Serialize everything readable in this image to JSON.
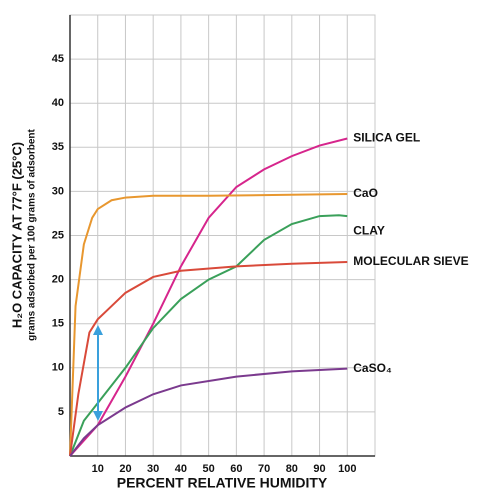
{
  "chart_data": {
    "type": "line",
    "xlabel": "PERCENT RELATIVE HUMIDITY",
    "ylabel": "H₂O CAPACITY AT 77°F (25°C)",
    "ylabel_sub": "grams adsorbed per 100 grams of adsorbent",
    "xlim": [
      0,
      110
    ],
    "ylim": [
      0,
      50
    ],
    "xticks": [
      10,
      20,
      30,
      40,
      50,
      60,
      70,
      80,
      90,
      100
    ],
    "yticks": [
      5,
      10,
      15,
      20,
      25,
      30,
      35,
      40,
      45
    ],
    "grid": true,
    "series": [
      {
        "name": "SILICA GEL",
        "color": "#d6258c",
        "x": [
          0,
          10,
          20,
          30,
          40,
          50,
          60,
          70,
          80,
          90,
          100
        ],
        "values": [
          0,
          3.5,
          9,
          15,
          21.5,
          27,
          30.5,
          32.5,
          34,
          35.2,
          36
        ]
      },
      {
        "name": "CaO",
        "color": "#e8972f",
        "x": [
          0,
          2,
          5,
          8,
          10,
          15,
          20,
          30,
          50,
          100
        ],
        "values": [
          0,
          17,
          24,
          27,
          28,
          29,
          29.3,
          29.5,
          29.5,
          29.7
        ]
      },
      {
        "name": "CLAY",
        "color": "#3aa05a",
        "x": [
          0,
          5,
          10,
          20,
          30,
          40,
          50,
          60,
          70,
          80,
          90,
          97,
          100
        ],
        "values": [
          0,
          4,
          6,
          10,
          14.5,
          17.8,
          20,
          21.5,
          24.5,
          26.3,
          27.2,
          27.3,
          27.2
        ]
      },
      {
        "name": "MOLECULAR SIEVE",
        "color": "#d94a3a",
        "x": [
          0,
          3,
          7,
          10,
          15,
          20,
          30,
          40,
          60,
          80,
          100
        ],
        "values": [
          0,
          7,
          14,
          15.5,
          17,
          18.5,
          20.3,
          21,
          21.5,
          21.8,
          22
        ]
      },
      {
        "name": "CaSO₄",
        "color": "#7b3a8e",
        "x": [
          0,
          5,
          10,
          20,
          30,
          40,
          60,
          80,
          100
        ],
        "values": [
          0,
          2,
          3.5,
          5.5,
          7,
          8,
          9,
          9.6,
          9.9
        ]
      }
    ]
  }
}
